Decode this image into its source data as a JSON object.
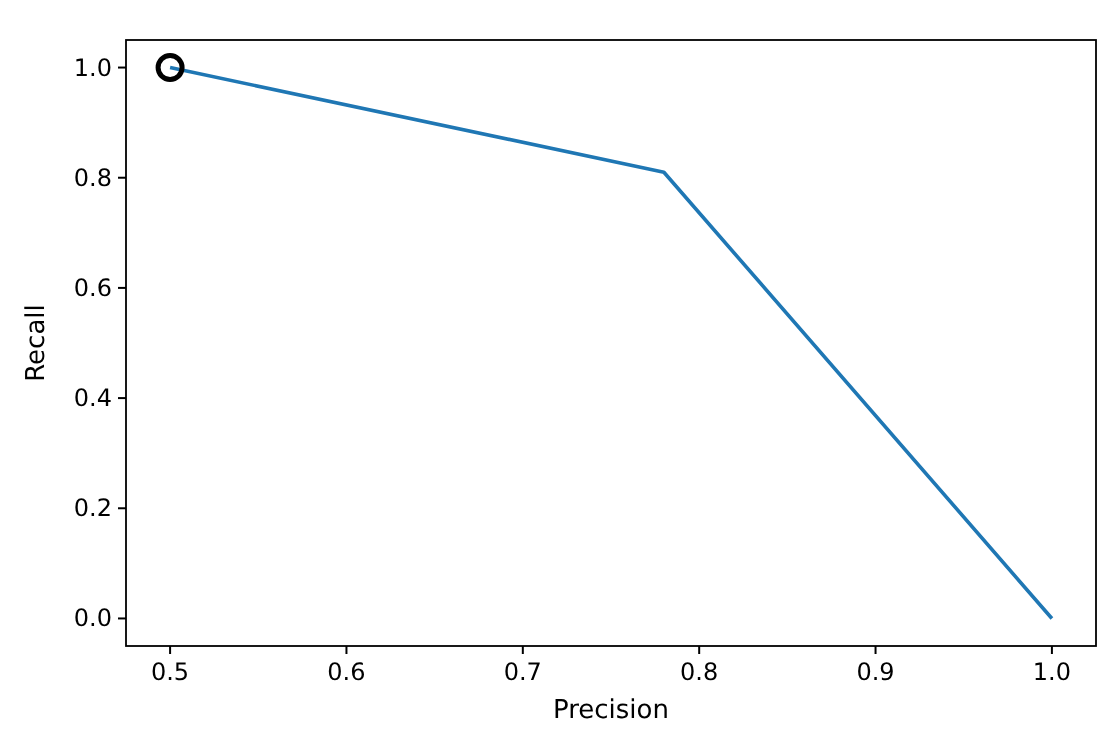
{
  "chart_data": {
    "type": "line",
    "xlabel": "Precision",
    "ylabel": "Recall",
    "xlim": [
      0.475,
      1.025
    ],
    "xticks": [
      {
        "value": 0.5,
        "label": "0.5"
      },
      {
        "value": 0.6,
        "label": "0.6"
      },
      {
        "value": 0.7,
        "label": "0.7"
      },
      {
        "value": 0.8,
        "label": "0.8"
      },
      {
        "value": 0.9,
        "label": "0.9"
      },
      {
        "value": 1.0,
        "label": "1.0"
      }
    ],
    "ylim": [
      -0.05,
      1.05
    ],
    "yticks": [
      {
        "value": 0,
        "label": "0.0"
      },
      {
        "value": 0.2,
        "label": "0.2"
      },
      {
        "value": 0.4,
        "label": "0.4"
      },
      {
        "value": 0.6,
        "label": "0.6"
      },
      {
        "value": 0.8,
        "label": "0.8"
      },
      {
        "value": 1.0,
        "label": "1.0"
      }
    ],
    "grid": false,
    "series": [
      {
        "color": "#1f77b4",
        "x": [
          0.5,
          0.78,
          1.0
        ],
        "values": [
          1.0,
          0.81,
          0.0
        ],
        "marker": "none",
        "line_style": "solid"
      },
      {
        "type": "scatter",
        "color": "#000000",
        "x": [
          0.5
        ],
        "values": [
          1.0
        ],
        "marker": "circle"
      }
    ]
  }
}
